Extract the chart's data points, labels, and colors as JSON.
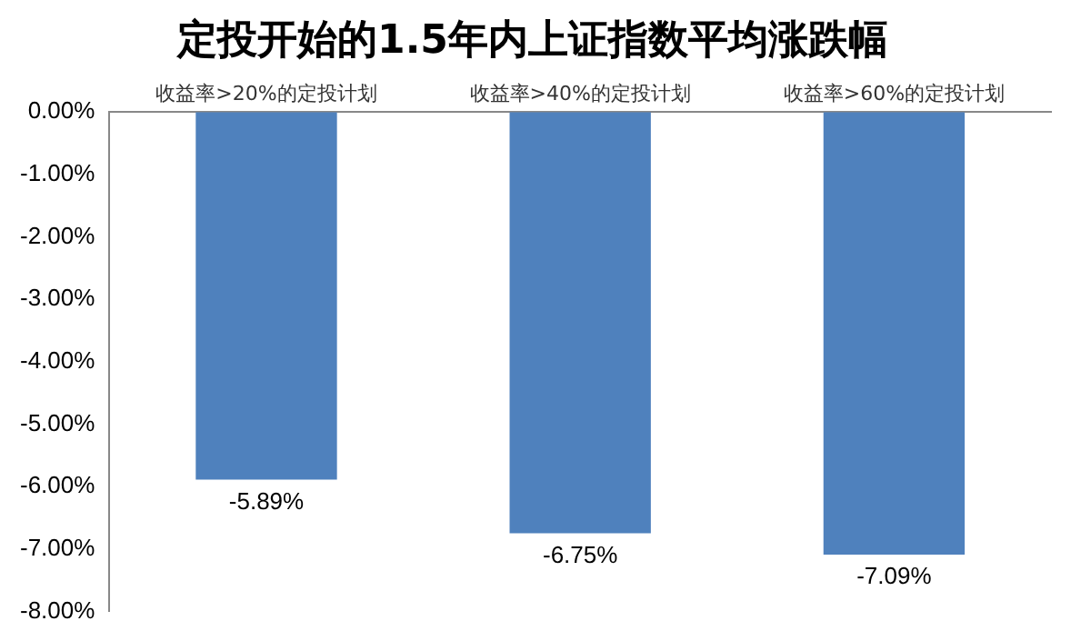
{
  "chart_data": {
    "type": "bar",
    "title": "定投开始的1.5年内上证指数平均涨跌幅",
    "categories": [
      "收益率>20%的定投计划",
      "收益率>40%的定投计划",
      "收益率>60%的定投计划"
    ],
    "values": [
      -5.89,
      -6.75,
      -7.09
    ],
    "value_labels": [
      "-5.89%",
      "-6.75%",
      "-7.09%"
    ],
    "color": "#4f81bd",
    "ylim": [
      -8,
      0
    ],
    "yticks": [
      {
        "value": 0,
        "label": "0.00%"
      },
      {
        "value": -1,
        "label": "-1.00%"
      },
      {
        "value": -2,
        "label": "-2.00%"
      },
      {
        "value": -3,
        "label": "-3.00%"
      },
      {
        "value": -4,
        "label": "-4.00%"
      },
      {
        "value": -5,
        "label": "-5.00%"
      },
      {
        "value": -6,
        "label": "-6.00%"
      },
      {
        "value": -7,
        "label": "-7.00%"
      },
      {
        "value": -8,
        "label": "-8.00%"
      }
    ],
    "grid": false,
    "legend": false
  }
}
